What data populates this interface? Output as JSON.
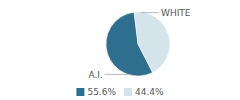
{
  "chart_data": {
    "type": "pie",
    "categories": [
      "A.I.",
      "WHITE"
    ],
    "values": [
      55.6,
      44.4
    ],
    "colors": [
      "#2e6e8e",
      "#d5e3eb"
    ],
    "value_labels": [
      "55.6%",
      "44.4%"
    ],
    "legend": "bottom"
  }
}
